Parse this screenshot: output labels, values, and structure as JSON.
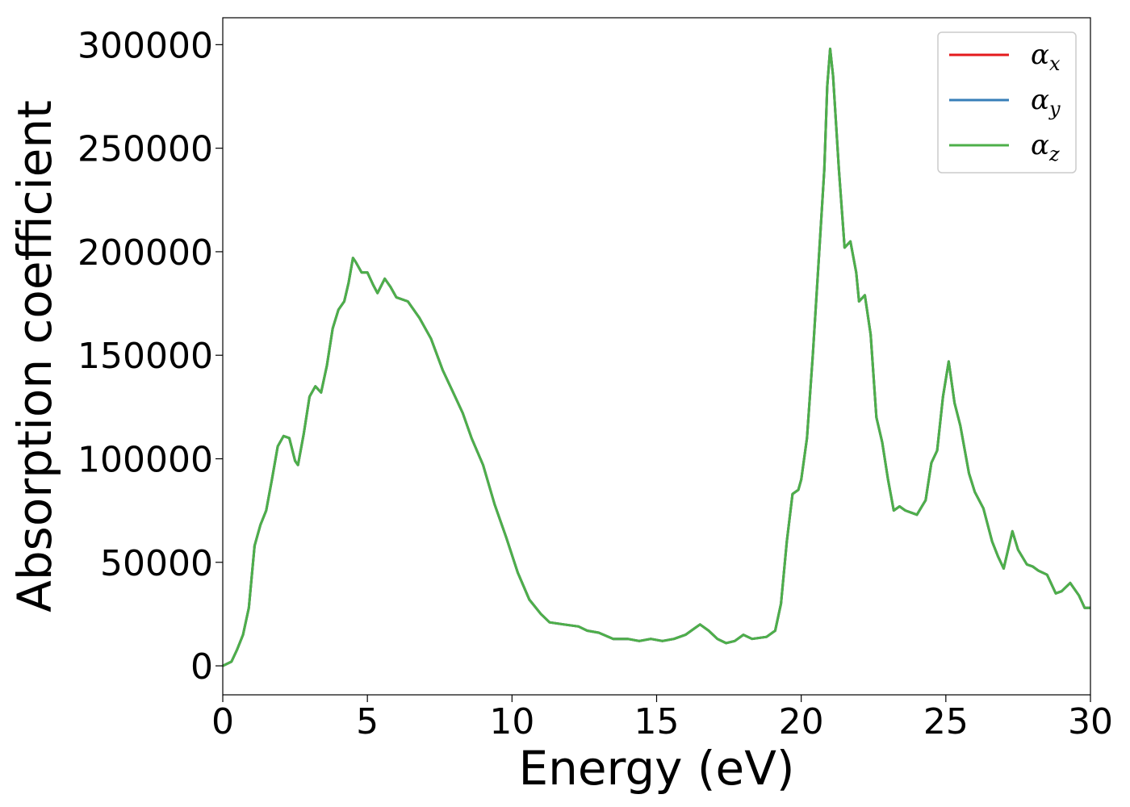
{
  "chart_data": {
    "type": "line",
    "title": "",
    "xlabel": "Energy (eV)",
    "ylabel": "Absorption coefficient",
    "xlim": [
      0,
      30
    ],
    "ylim": [
      -14000,
      313000
    ],
    "x_ticks": [
      "0",
      "5",
      "10",
      "15",
      "20",
      "25",
      "30"
    ],
    "y_ticks": [
      "0",
      "50000",
      "100000",
      "150000",
      "200000",
      "250000",
      "300000"
    ],
    "grid": false,
    "legend_position": "top-right",
    "legend": [
      {
        "base": "α",
        "sub": "x",
        "color": "#e41a1c"
      },
      {
        "base": "α",
        "sub": "y",
        "color": "#377eb8"
      },
      {
        "base": "α",
        "sub": "z",
        "color": "#4daf4a"
      }
    ],
    "series_points": [
      [
        0,
        0
      ],
      [
        0.3,
        2000
      ],
      [
        0.5,
        8000
      ],
      [
        0.7,
        15000
      ],
      [
        0.9,
        28000
      ],
      [
        1.1,
        58000
      ],
      [
        1.3,
        68000
      ],
      [
        1.5,
        75000
      ],
      [
        1.7,
        90000
      ],
      [
        1.9,
        106000
      ],
      [
        2.1,
        111000
      ],
      [
        2.3,
        110000
      ],
      [
        2.5,
        99000
      ],
      [
        2.6,
        97000
      ],
      [
        2.8,
        112000
      ],
      [
        3.0,
        130000
      ],
      [
        3.2,
        135000
      ],
      [
        3.4,
        132000
      ],
      [
        3.6,
        145000
      ],
      [
        3.8,
        163000
      ],
      [
        4.0,
        172000
      ],
      [
        4.2,
        176000
      ],
      [
        4.35,
        185000
      ],
      [
        4.5,
        197000
      ],
      [
        4.6,
        195000
      ],
      [
        4.8,
        190000
      ],
      [
        5.0,
        190000
      ],
      [
        5.2,
        184000
      ],
      [
        5.35,
        180000
      ],
      [
        5.6,
        187000
      ],
      [
        5.8,
        183000
      ],
      [
        6.0,
        178000
      ],
      [
        6.4,
        176000
      ],
      [
        6.8,
        168000
      ],
      [
        7.2,
        158000
      ],
      [
        7.6,
        143000
      ],
      [
        8.0,
        131000
      ],
      [
        8.3,
        122000
      ],
      [
        8.6,
        110000
      ],
      [
        9.0,
        97000
      ],
      [
        9.4,
        78000
      ],
      [
        9.8,
        62000
      ],
      [
        10.2,
        45000
      ],
      [
        10.6,
        32000
      ],
      [
        11.0,
        25000
      ],
      [
        11.3,
        21000
      ],
      [
        11.8,
        20000
      ],
      [
        12.3,
        19000
      ],
      [
        12.6,
        17000
      ],
      [
        13.0,
        16000
      ],
      [
        13.5,
        13000
      ],
      [
        14.0,
        13000
      ],
      [
        14.4,
        12000
      ],
      [
        14.8,
        13000
      ],
      [
        15.2,
        12000
      ],
      [
        15.6,
        13000
      ],
      [
        16.0,
        15000
      ],
      [
        16.3,
        18000
      ],
      [
        16.5,
        20000
      ],
      [
        16.8,
        17000
      ],
      [
        17.1,
        13000
      ],
      [
        17.4,
        11000
      ],
      [
        17.7,
        12000
      ],
      [
        18.0,
        15000
      ],
      [
        18.3,
        13000
      ],
      [
        18.8,
        14000
      ],
      [
        19.1,
        17000
      ],
      [
        19.3,
        30000
      ],
      [
        19.5,
        60000
      ],
      [
        19.7,
        83000
      ],
      [
        19.9,
        85000
      ],
      [
        20.0,
        90000
      ],
      [
        20.2,
        110000
      ],
      [
        20.4,
        150000
      ],
      [
        20.6,
        195000
      ],
      [
        20.8,
        240000
      ],
      [
        20.9,
        280000
      ],
      [
        21.0,
        298000
      ],
      [
        21.1,
        285000
      ],
      [
        21.3,
        240000
      ],
      [
        21.5,
        202000
      ],
      [
        21.7,
        205000
      ],
      [
        21.9,
        190000
      ],
      [
        22.0,
        176000
      ],
      [
        22.2,
        179000
      ],
      [
        22.4,
        160000
      ],
      [
        22.6,
        120000
      ],
      [
        22.8,
        108000
      ],
      [
        23.0,
        90000
      ],
      [
        23.2,
        75000
      ],
      [
        23.4,
        77000
      ],
      [
        23.6,
        75000
      ],
      [
        23.8,
        74000
      ],
      [
        24.0,
        73000
      ],
      [
        24.3,
        80000
      ],
      [
        24.5,
        98000
      ],
      [
        24.7,
        104000
      ],
      [
        24.9,
        130000
      ],
      [
        25.1,
        147000
      ],
      [
        25.3,
        127000
      ],
      [
        25.5,
        116000
      ],
      [
        25.8,
        93000
      ],
      [
        26.0,
        84000
      ],
      [
        26.3,
        76000
      ],
      [
        26.6,
        60000
      ],
      [
        26.8,
        53000
      ],
      [
        27.0,
        47000
      ],
      [
        27.3,
        65000
      ],
      [
        27.5,
        56000
      ],
      [
        27.8,
        49000
      ],
      [
        28.0,
        48000
      ],
      [
        28.2,
        46000
      ],
      [
        28.5,
        44000
      ],
      [
        28.8,
        35000
      ],
      [
        29.0,
        36000
      ],
      [
        29.3,
        40000
      ],
      [
        29.6,
        34000
      ],
      [
        29.8,
        28000
      ],
      [
        30.0,
        28000
      ]
    ],
    "series_colors": [
      "#e41a1c",
      "#377eb8",
      "#4daf4a"
    ]
  }
}
